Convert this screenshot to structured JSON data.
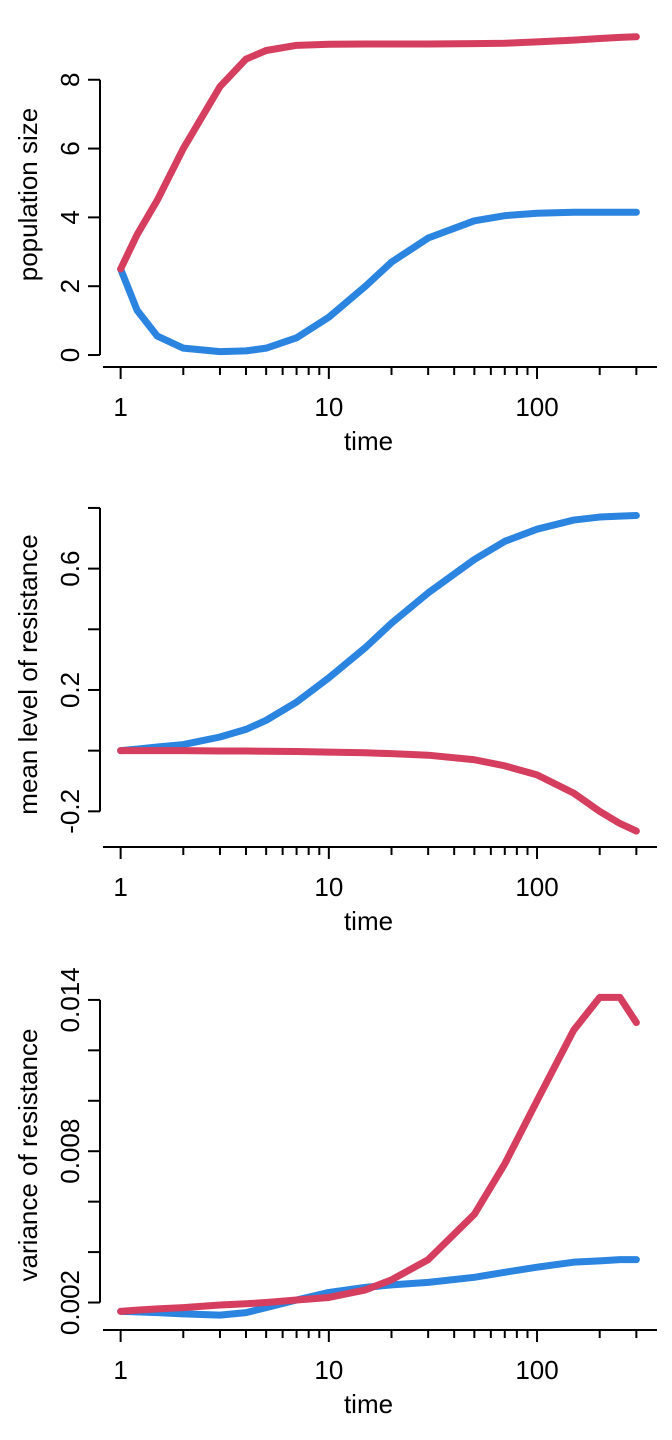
{
  "chart_data": [
    {
      "type": "line",
      "xlabel": "time",
      "ylabel": "population size",
      "xlog": true,
      "x": [
        1,
        1.2,
        1.5,
        2,
        3,
        4,
        5,
        7,
        10,
        15,
        20,
        30,
        50,
        70,
        100,
        150,
        200,
        250,
        300
      ],
      "series": [
        {
          "color": "#2a84e0",
          "values": [
            2.5,
            1.3,
            0.55,
            0.2,
            0.1,
            0.12,
            0.2,
            0.5,
            1.1,
            2.0,
            2.7,
            3.4,
            3.9,
            4.05,
            4.12,
            4.15,
            4.15,
            4.15,
            4.15
          ]
        },
        {
          "color": "#d53e5f",
          "values": [
            2.5,
            3.5,
            4.5,
            6.0,
            7.8,
            8.6,
            8.85,
            9.0,
            9.03,
            9.04,
            9.04,
            9.04,
            9.05,
            9.06,
            9.1,
            9.15,
            9.2,
            9.23,
            9.25
          ]
        }
      ],
      "xlim": [
        0.796,
        376.9
      ],
      "xticks": [
        1,
        10,
        100
      ],
      "xminorticks": [
        2,
        3,
        4,
        5,
        6,
        7,
        8,
        9,
        20,
        30,
        40,
        50,
        60,
        70,
        80,
        90,
        200,
        300
      ],
      "ylim": [
        -0.29,
        9.62
      ],
      "yticks": [
        0,
        2,
        4,
        6,
        8
      ]
    },
    {
      "type": "line",
      "xlabel": "time",
      "ylabel": "mean level of resistance",
      "xlog": true,
      "x": [
        1,
        1.2,
        1.5,
        2,
        3,
        4,
        5,
        7,
        10,
        15,
        20,
        30,
        50,
        70,
        100,
        150,
        200,
        250,
        300
      ],
      "series": [
        {
          "color": "#2a84e0",
          "values": [
            0,
            0.005,
            0.012,
            0.02,
            0.045,
            0.07,
            0.1,
            0.16,
            0.24,
            0.34,
            0.42,
            0.52,
            0.63,
            0.69,
            0.73,
            0.76,
            0.77,
            0.773,
            0.775
          ]
        },
        {
          "color": "#d53e5f",
          "values": [
            0,
            0,
            0,
            0,
            -0.001,
            -0.001,
            -0.002,
            -0.003,
            -0.005,
            -0.007,
            -0.01,
            -0.015,
            -0.03,
            -0.05,
            -0.08,
            -0.14,
            -0.2,
            -0.24,
            -0.265
          ]
        }
      ],
      "xlim": [
        0.796,
        376.9
      ],
      "xticks": [
        1,
        10,
        100
      ],
      "xminorticks": [
        2,
        3,
        4,
        5,
        6,
        7,
        8,
        9,
        20,
        30,
        40,
        50,
        60,
        70,
        80,
        90,
        200,
        300
      ],
      "ylim": [
        -0.311,
        0.813
      ],
      "yticks": [
        -0.2,
        0.2,
        0.6
      ],
      "yminorticks": [
        0,
        0.4,
        0.8
      ]
    },
    {
      "type": "line",
      "xlabel": "time",
      "ylabel": "variance of resistance",
      "xlog": true,
      "x": [
        1,
        1.2,
        1.5,
        2,
        3,
        4,
        5,
        7,
        10,
        15,
        20,
        30,
        50,
        70,
        100,
        150,
        200,
        250,
        300
      ],
      "series": [
        {
          "color": "#2a84e0",
          "values": [
            0.00165,
            0.00163,
            0.0016,
            0.00155,
            0.0015,
            0.0016,
            0.0018,
            0.0021,
            0.0024,
            0.0026,
            0.0027,
            0.0028,
            0.003,
            0.0032,
            0.0034,
            0.0036,
            0.00365,
            0.0037,
            0.0037
          ]
        },
        {
          "color": "#d53e5f",
          "values": [
            0.00165,
            0.0017,
            0.00175,
            0.0018,
            0.0019,
            0.00195,
            0.002,
            0.0021,
            0.0022,
            0.0025,
            0.0029,
            0.0037,
            0.0055,
            0.0075,
            0.01,
            0.0128,
            0.0141,
            0.0141,
            0.0131
          ]
        }
      ],
      "xlim": [
        0.796,
        376.9
      ],
      "xticks": [
        1,
        10,
        100
      ],
      "xminorticks": [
        2,
        3,
        4,
        5,
        6,
        7,
        8,
        9,
        20,
        30,
        40,
        50,
        60,
        70,
        80,
        90,
        200,
        300
      ],
      "ylim": [
        0.00099,
        0.01471
      ],
      "yticks": [
        0.002,
        0.008,
        0.014
      ],
      "yminorticks": [
        0.004,
        0.006,
        0.01,
        0.012
      ]
    }
  ]
}
